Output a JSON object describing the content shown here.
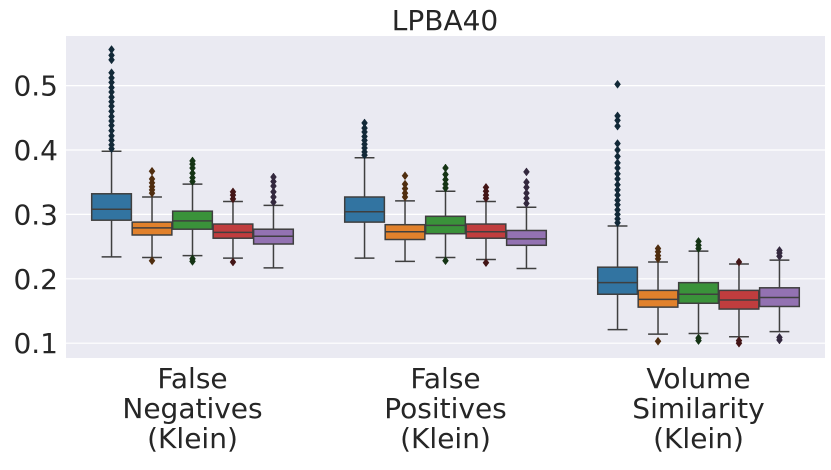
{
  "chart_data": {
    "type": "box",
    "title": "LPBA40",
    "xlabel": "",
    "ylabel": "",
    "ylim": [
      0.077,
      0.577
    ],
    "yticks": [
      0.1,
      0.2,
      0.3,
      0.4,
      0.5
    ],
    "ytick_labels": [
      "0.1",
      "0.2",
      "0.3",
      "0.4",
      "0.5"
    ],
    "grid": true,
    "categories": [
      {
        "lines": [
          "False",
          "Negatives",
          "(Klein)"
        ]
      },
      {
        "lines": [
          "False",
          "Positives",
          "(Klein)"
        ]
      },
      {
        "lines": [
          "Volume",
          "Similarity",
          "(Klein)"
        ]
      }
    ],
    "series_colors": [
      "#3274a1",
      "#e1812c",
      "#3a923a",
      "#c03d3e",
      "#9372b2"
    ],
    "boxes": [
      [
        {
          "q1": 0.291,
          "median": 0.308,
          "q3": 0.332,
          "whislo": 0.234,
          "whishi": 0.398,
          "fliers": [
            0.402,
            0.408,
            0.415,
            0.422,
            0.43,
            0.438,
            0.445,
            0.452,
            0.46,
            0.468,
            0.475,
            0.482,
            0.49,
            0.497,
            0.505,
            0.512,
            0.52,
            0.54,
            0.547,
            0.556
          ]
        },
        {
          "q1": 0.268,
          "median": 0.279,
          "q3": 0.288,
          "whislo": 0.233,
          "whishi": 0.327,
          "fliers": [
            0.228,
            0.333,
            0.338,
            0.343,
            0.349,
            0.355,
            0.367
          ]
        },
        {
          "q1": 0.277,
          "median": 0.29,
          "q3": 0.305,
          "whislo": 0.236,
          "whishi": 0.347,
          "fliers": [
            0.227,
            0.231,
            0.351,
            0.357,
            0.364,
            0.372,
            0.378,
            0.383
          ]
        },
        {
          "q1": 0.263,
          "median": 0.272,
          "q3": 0.285,
          "whislo": 0.232,
          "whishi": 0.32,
          "fliers": [
            0.226,
            0.324,
            0.33,
            0.335
          ]
        },
        {
          "q1": 0.254,
          "median": 0.266,
          "q3": 0.277,
          "whislo": 0.217,
          "whishi": 0.314,
          "fliers": [
            0.319,
            0.327,
            0.335,
            0.344,
            0.351,
            0.358
          ]
        }
      ],
      [
        {
          "q1": 0.288,
          "median": 0.304,
          "q3": 0.327,
          "whislo": 0.232,
          "whishi": 0.388,
          "fliers": [
            0.392,
            0.397,
            0.403,
            0.409,
            0.415,
            0.421,
            0.428,
            0.434,
            0.442
          ]
        },
        {
          "q1": 0.261,
          "median": 0.273,
          "q3": 0.284,
          "whislo": 0.227,
          "whishi": 0.321,
          "fliers": [
            0.327,
            0.333,
            0.34,
            0.347,
            0.36
          ]
        },
        {
          "q1": 0.27,
          "median": 0.283,
          "q3": 0.297,
          "whislo": 0.233,
          "whishi": 0.336,
          "fliers": [
            0.228,
            0.341,
            0.347,
            0.354,
            0.362,
            0.372
          ]
        },
        {
          "q1": 0.263,
          "median": 0.273,
          "q3": 0.285,
          "whislo": 0.23,
          "whishi": 0.32,
          "fliers": [
            0.225,
            0.325,
            0.33,
            0.336,
            0.342
          ]
        },
        {
          "q1": 0.252,
          "median": 0.262,
          "q3": 0.275,
          "whislo": 0.216,
          "whishi": 0.311,
          "fliers": [
            0.317,
            0.325,
            0.333,
            0.342,
            0.35,
            0.366
          ]
        }
      ],
      [
        {
          "q1": 0.176,
          "median": 0.194,
          "q3": 0.218,
          "whislo": 0.121,
          "whishi": 0.282,
          "fliers": [
            0.287,
            0.293,
            0.3,
            0.307,
            0.315,
            0.322,
            0.33,
            0.338,
            0.346,
            0.355,
            0.363,
            0.372,
            0.38,
            0.39,
            0.4,
            0.41,
            0.437,
            0.446,
            0.453,
            0.502
          ]
        },
        {
          "q1": 0.156,
          "median": 0.168,
          "q3": 0.182,
          "whislo": 0.114,
          "whishi": 0.226,
          "fliers": [
            0.103,
            0.231,
            0.236,
            0.242,
            0.247
          ]
        },
        {
          "q1": 0.162,
          "median": 0.176,
          "q3": 0.194,
          "whislo": 0.115,
          "whishi": 0.243,
          "fliers": [
            0.104,
            0.108,
            0.247,
            0.252,
            0.258
          ]
        },
        {
          "q1": 0.153,
          "median": 0.167,
          "q3": 0.182,
          "whislo": 0.11,
          "whishi": 0.223,
          "fliers": [
            0.1,
            0.104,
            0.226
          ]
        },
        {
          "q1": 0.157,
          "median": 0.171,
          "q3": 0.186,
          "whislo": 0.118,
          "whishi": 0.229,
          "fliers": [
            0.105,
            0.109,
            0.235,
            0.24,
            0.244
          ]
        }
      ]
    ]
  }
}
